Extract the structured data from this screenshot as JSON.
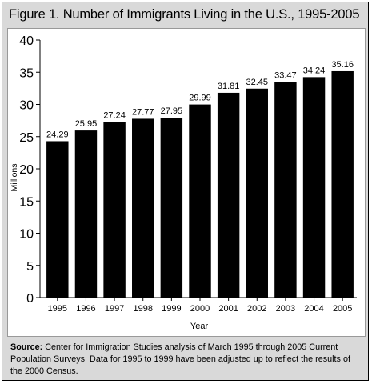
{
  "chart_data": {
    "type": "bar",
    "title": "Figure 1. Number of Immigrants Living in the U.S., 1995-2005",
    "xlabel": "Year",
    "ylabel": "Millions",
    "ylim": [
      0,
      40
    ],
    "yticks": [
      0,
      5,
      10,
      15,
      20,
      25,
      30,
      35,
      40
    ],
    "categories": [
      "1995",
      "1996",
      "1997",
      "1998",
      "1999",
      "2000",
      "2001",
      "2002",
      "2003",
      "2004",
      "2005"
    ],
    "values": [
      24.29,
      25.95,
      27.24,
      27.77,
      27.95,
      29.99,
      31.81,
      32.45,
      33.47,
      34.24,
      35.16
    ],
    "data_labels": [
      "24.29",
      "25.95",
      "27.24",
      "27.77",
      "27.95",
      "29.99",
      "31.81",
      "32.45",
      "33.47",
      "34.24",
      "35.16"
    ],
    "bar_color": "#000000",
    "grid": false,
    "legend": "none"
  },
  "source": {
    "label": "Source:",
    "text": " Center for Immigration Studies analysis of March 1995 through 2005 Current Population Surveys. Data for 1995 to 1999 have been adjusted up to reflect the results of the 2000 Census."
  }
}
